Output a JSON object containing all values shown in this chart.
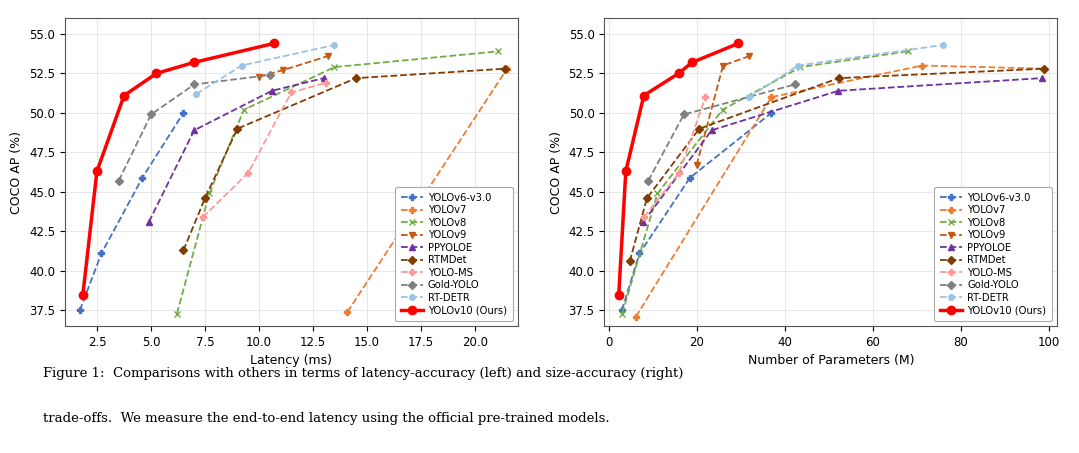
{
  "left_chart": {
    "xlabel": "Latency (ms)",
    "ylabel": "COCO AP (%)",
    "xlim": [
      1.0,
      22.0
    ],
    "ylim": [
      36.5,
      56.0
    ],
    "xticks": [
      2.5,
      5.0,
      7.5,
      10.0,
      12.5,
      15.0,
      17.5,
      20.0
    ],
    "yticks": [
      37.5,
      40.0,
      42.5,
      45.0,
      47.5,
      50.0,
      52.5,
      55.0
    ],
    "series": {
      "YOLOv6-v3.0": {
        "color": "#4472c4",
        "marker": "P",
        "linestyle": "--",
        "linewidth": 1.3,
        "x": [
          1.7,
          2.7,
          4.6,
          6.5
        ],
        "y": [
          37.5,
          41.1,
          45.9,
          50.0
        ]
      },
      "YOLOv7": {
        "color": "#ed7d31",
        "marker": "P",
        "linestyle": "--",
        "linewidth": 1.3,
        "x": [
          14.1,
          21.5
        ],
        "y": [
          37.4,
          52.8
        ]
      },
      "YOLOv8": {
        "color": "#70ad47",
        "marker": "x",
        "linestyle": "--",
        "linewidth": 1.3,
        "x": [
          6.2,
          7.7,
          9.3,
          13.5,
          21.1
        ],
        "y": [
          37.3,
          44.9,
          50.2,
          52.9,
          53.9
        ]
      },
      "YOLOv9": {
        "color": "#c55a11",
        "marker": "v",
        "linestyle": "--",
        "linewidth": 1.3,
        "x": [
          10.0,
          11.1,
          13.2
        ],
        "y": [
          52.3,
          52.7,
          53.6
        ]
      },
      "PPYOLOE": {
        "color": "#7030a0",
        "marker": "^",
        "linestyle": "--",
        "linewidth": 1.3,
        "x": [
          4.9,
          7.0,
          10.6,
          13.0
        ],
        "y": [
          43.1,
          48.9,
          51.4,
          52.2
        ]
      },
      "RTMDet": {
        "color": "#833c00",
        "marker": "D",
        "linestyle": "--",
        "linewidth": 1.3,
        "x": [
          6.5,
          7.5,
          9.0,
          14.5,
          21.4
        ],
        "y": [
          41.3,
          44.6,
          49.0,
          52.2,
          52.8
        ]
      },
      "YOLO-MS": {
        "color": "#ff9999",
        "marker": "P",
        "linestyle": "--",
        "linewidth": 1.3,
        "x": [
          7.4,
          9.5,
          11.5,
          13.1
        ],
        "y": [
          43.4,
          46.2,
          51.3,
          51.9
        ]
      },
      "Gold-YOLO": {
        "color": "#808080",
        "marker": "D",
        "linestyle": "--",
        "linewidth": 1.3,
        "x": [
          3.5,
          5.0,
          7.0,
          10.5
        ],
        "y": [
          45.7,
          49.9,
          51.8,
          52.4
        ]
      },
      "RT-DETR": {
        "color": "#9dc3e6",
        "marker": "o",
        "linestyle": "--",
        "linewidth": 1.3,
        "x": [
          7.1,
          9.2,
          13.5
        ],
        "y": [
          51.2,
          53.0,
          54.3
        ]
      },
      "YOLOv10 (Ours)": {
        "color": "#ff0000",
        "marker": "o",
        "linestyle": "-",
        "linewidth": 2.5,
        "x": [
          1.84,
          2.49,
          3.75,
          5.25,
          7.0,
          10.7
        ],
        "y": [
          38.5,
          46.3,
          51.1,
          52.5,
          53.2,
          54.4
        ]
      }
    }
  },
  "right_chart": {
    "xlabel": "Number of Parameters (M)",
    "ylabel": "COCO AP (%)",
    "xlim": [
      -1,
      102
    ],
    "ylim": [
      36.5,
      56.0
    ],
    "xticks": [
      0,
      20,
      40,
      60,
      80,
      100
    ],
    "yticks": [
      37.5,
      40.0,
      42.5,
      45.0,
      47.5,
      50.0,
      52.5,
      55.0
    ],
    "series": {
      "YOLOv6-v3.0": {
        "color": "#4472c4",
        "marker": "P",
        "linestyle": "--",
        "linewidth": 1.3,
        "x": [
          3.0,
          7.0,
          18.5,
          37.0
        ],
        "y": [
          37.5,
          41.1,
          45.9,
          50.0
        ]
      },
      "YOLOv7": {
        "color": "#ed7d31",
        "marker": "P",
        "linestyle": "--",
        "linewidth": 1.3,
        "x": [
          6.2,
          37.0,
          71.3,
          99.0
        ],
        "y": [
          37.1,
          51.0,
          53.0,
          52.8
        ]
      },
      "YOLOv8": {
        "color": "#70ad47",
        "marker": "x",
        "linestyle": "--",
        "linewidth": 1.3,
        "x": [
          3.1,
          11.1,
          25.9,
          43.6,
          68.1
        ],
        "y": [
          37.3,
          44.9,
          50.2,
          52.9,
          53.9
        ]
      },
      "YOLOv9": {
        "color": "#c55a11",
        "marker": "v",
        "linestyle": "--",
        "linewidth": 1.3,
        "x": [
          20.0,
          26.0,
          32.0
        ],
        "y": [
          46.7,
          53.0,
          53.6
        ]
      },
      "PPYOLOE": {
        "color": "#7030a0",
        "marker": "^",
        "linestyle": "--",
        "linewidth": 1.3,
        "x": [
          7.9,
          23.4,
          52.2,
          98.4
        ],
        "y": [
          43.1,
          48.9,
          51.4,
          52.2
        ]
      },
      "RTMDet": {
        "color": "#833c00",
        "marker": "D",
        "linestyle": "--",
        "linewidth": 1.3,
        "x": [
          4.8,
          8.7,
          20.6,
          52.3,
          98.9
        ],
        "y": [
          40.6,
          44.6,
          49.0,
          52.2,
          52.8
        ]
      },
      "YOLO-MS": {
        "color": "#ff9999",
        "marker": "P",
        "linestyle": "--",
        "linewidth": 1.3,
        "x": [
          8.0,
          16.0,
          22.0
        ],
        "y": [
          43.4,
          46.2,
          51.0
        ]
      },
      "Gold-YOLO": {
        "color": "#808080",
        "marker": "D",
        "linestyle": "--",
        "linewidth": 1.3,
        "x": [
          9.0,
          17.1,
          42.3
        ],
        "y": [
          45.7,
          49.9,
          51.8
        ]
      },
      "RT-DETR": {
        "color": "#9dc3e6",
        "marker": "o",
        "linestyle": "--",
        "linewidth": 1.3,
        "x": [
          32.0,
          43.0,
          76.0
        ],
        "y": [
          51.0,
          53.0,
          54.3
        ]
      },
      "YOLOv10 (Ours)": {
        "color": "#ff0000",
        "marker": "o",
        "linestyle": "-",
        "linewidth": 2.5,
        "x": [
          2.3,
          3.9,
          8.0,
          15.9,
          19.0,
          29.5
        ],
        "y": [
          38.5,
          46.3,
          51.1,
          52.5,
          53.2,
          54.4
        ]
      }
    }
  },
  "caption_line1": "Figure 1:  Comparisons with others in terms of latency-accuracy (left) and size-accuracy (right)",
  "caption_line2": "trade-offs.  We measure the end-to-end latency using the official pre-trained models.",
  "legend_order": [
    "YOLOv6-v3.0",
    "YOLOv7",
    "YOLOv8",
    "YOLOv9",
    "PPYOLOE",
    "RTMDet",
    "YOLO-MS",
    "Gold-YOLO",
    "RT-DETR",
    "YOLOv10 (Ours)"
  ]
}
